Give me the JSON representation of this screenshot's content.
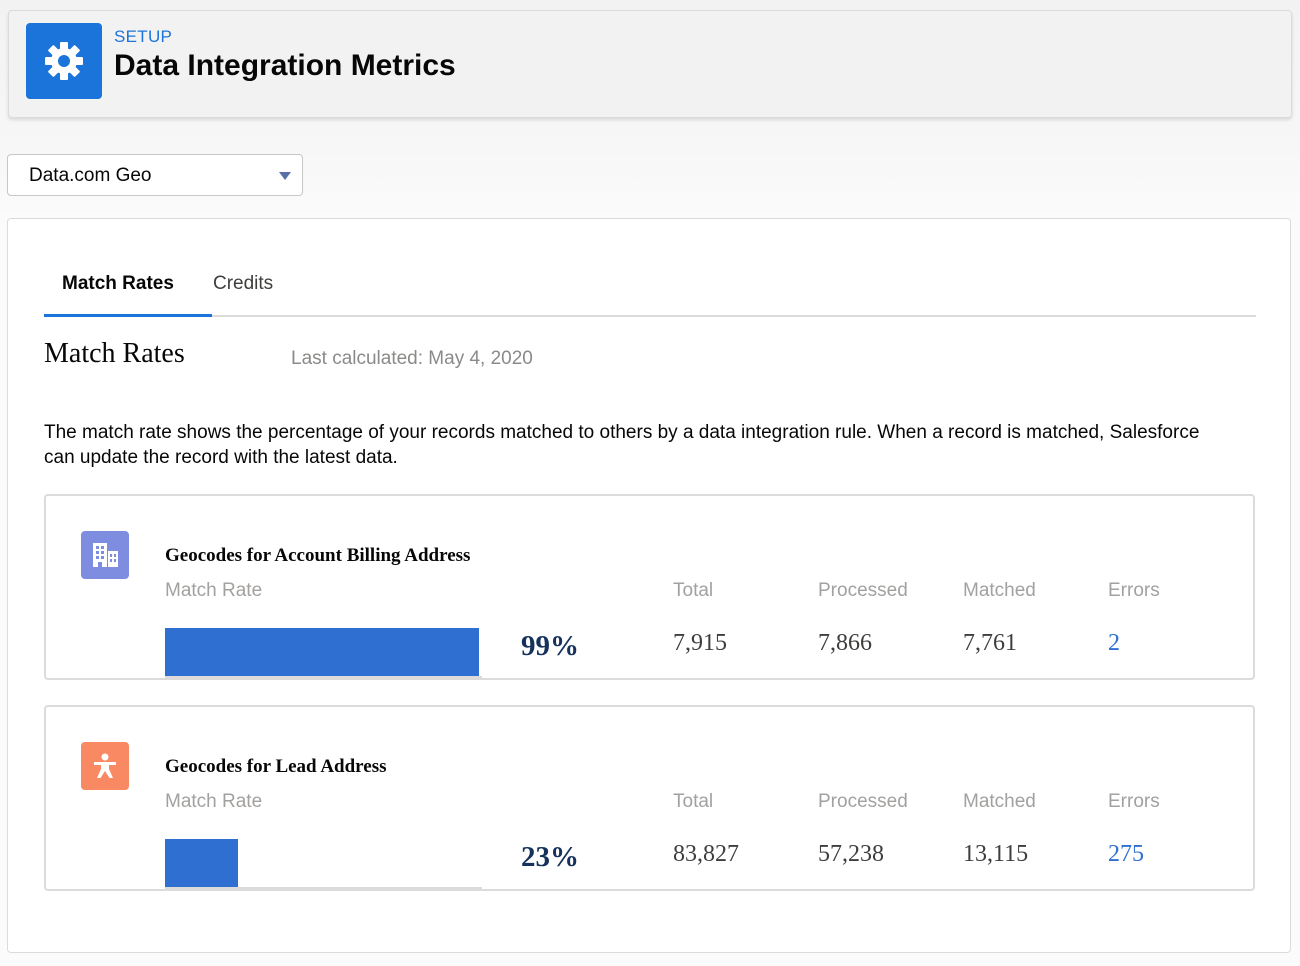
{
  "header": {
    "eyebrow": "SETUP",
    "title": "Data Integration Metrics",
    "icon": "gear-icon",
    "accent_color": "#1b74d9"
  },
  "selector": {
    "value": "Data.com Geo"
  },
  "tabs": [
    {
      "label": "Match Rates",
      "active": true
    },
    {
      "label": "Credits",
      "active": false
    }
  ],
  "section": {
    "title": "Match Rates",
    "last_calculated": "Last calculated: May 4, 2020",
    "description": "The match rate shows the percentage of your records matched to others by a data integration rule. When a record is matched, Salesforce can update the record with the latest data."
  },
  "column_labels": {
    "match_rate": "Match Rate",
    "total": "Total",
    "processed": "Processed",
    "matched": "Matched",
    "errors": "Errors"
  },
  "rules": [
    {
      "title": "Geocodes for Account Billing Address",
      "icon": "building-icon",
      "icon_color": "#7f8de1",
      "match_rate_label": "99%",
      "match_rate_value": 99,
      "total": "7,915",
      "processed": "7,866",
      "matched": "7,761",
      "errors": "2"
    },
    {
      "title": "Geocodes for Lead Address",
      "icon": "lead-person-icon",
      "icon_color": "#f88962",
      "match_rate_label": "23%",
      "match_rate_value": 23,
      "total": "83,827",
      "processed": "57,238",
      "matched": "13,115",
      "errors": "275"
    }
  ]
}
